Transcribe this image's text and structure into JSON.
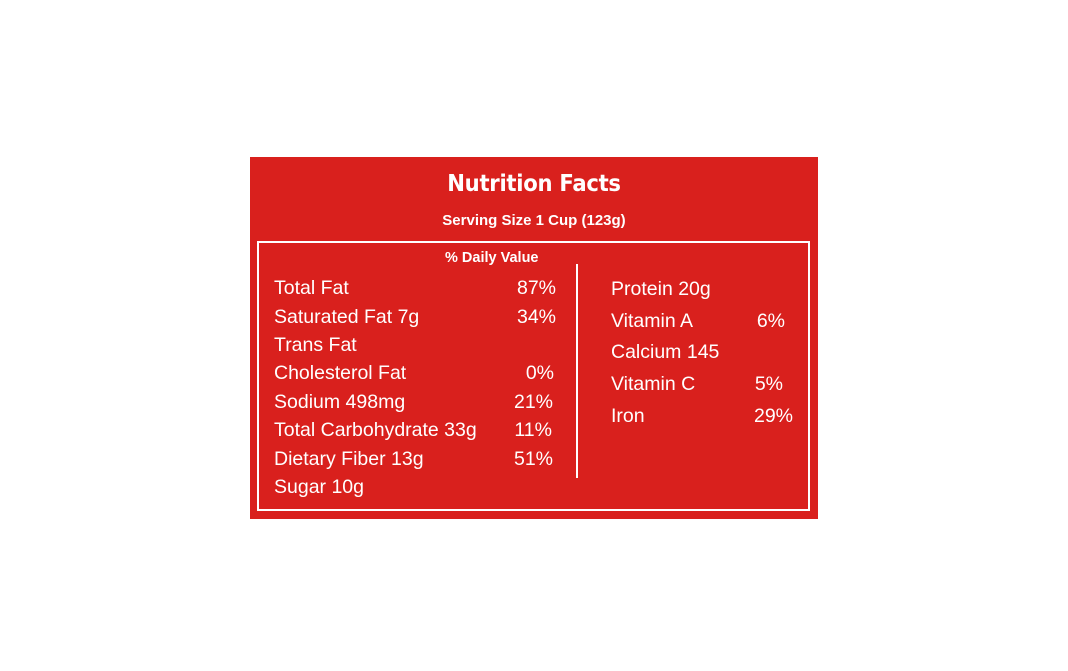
{
  "label": {
    "title": "Nutrition Facts",
    "serving": "Serving Size 1 Cup (123g)",
    "daily_value_header": "% Daily Value",
    "background_color": "#d9201d",
    "left_items": [
      {
        "name": "Total Fat",
        "value": "87%"
      },
      {
        "name": "Saturated Fat 7g",
        "value": "34%"
      },
      {
        "name": "Trans Fat",
        "value": ""
      },
      {
        "name": "Cholesterol Fat",
        "value": "0%"
      },
      {
        "name": "Sodium 498mg",
        "value": "21%"
      },
      {
        "name": "Total Carbohydrate 33g",
        "value": "11%"
      },
      {
        "name": "Dietary Fiber 13g",
        "value": "51%"
      },
      {
        "name": "Sugar 10g",
        "value": ""
      }
    ],
    "right_items": [
      {
        "name": "Protein 20g",
        "value": ""
      },
      {
        "name": "Vitamin A",
        "value": "6%"
      },
      {
        "name": "Calcium 145",
        "value": ""
      },
      {
        "name": "Vitamin C",
        "value": "5%"
      },
      {
        "name": "Iron",
        "value": "29%"
      }
    ]
  }
}
